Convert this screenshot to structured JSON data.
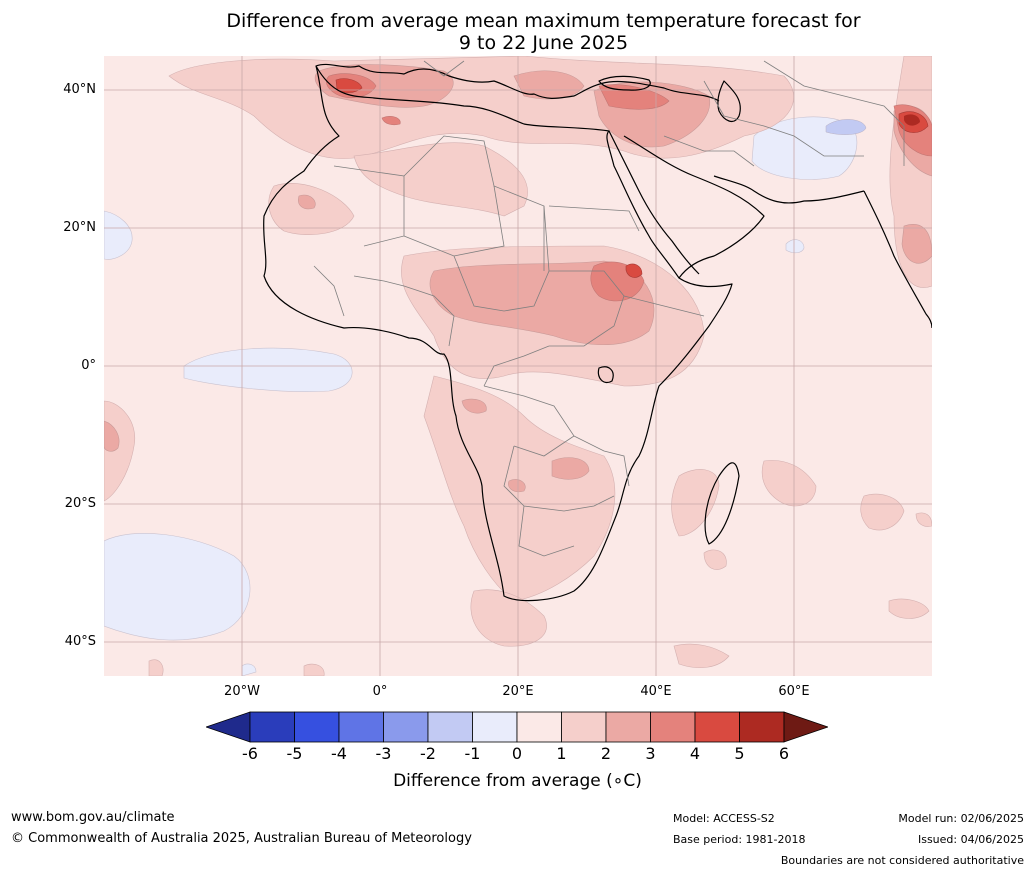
{
  "title_line1": "Difference from average mean maximum temperature forecast for",
  "title_line2": "9 to 22 June 2025",
  "lat_labels": [
    "40°N",
    "20°N",
    "0°",
    "20°S",
    "40°S"
  ],
  "lon_labels": [
    "20°W",
    "0°",
    "20°E",
    "40°E",
    "60°E"
  ],
  "colorbar": {
    "ticks": [
      "-6",
      "-5",
      "-4",
      "-3",
      "-2",
      "-1",
      "0",
      "1",
      "2",
      "3",
      "4",
      "5",
      "6"
    ],
    "colors": [
      "#1f2a8c",
      "#2a3dbb",
      "#3650e0",
      "#5f74e6",
      "#8a9aec",
      "#c2caf3",
      "#e9ecfb",
      "#fbe9e7",
      "#f5cfcb",
      "#eba9a4",
      "#e4827c",
      "#d94a40",
      "#ad2a22",
      "#6e1a14"
    ],
    "label": "Difference from average (∘C)"
  },
  "footer": {
    "website": "www.bom.gov.au/climate",
    "copyright": "© Commonwealth of Australia 2025, Australian Bureau of Meteorology",
    "model": "Model: ACCESS-S2",
    "base_period": "Base period: 1981-2018",
    "model_run": "Model run: 02/06/2025",
    "issued": "Issued: 04/06/2025",
    "boundaries": "Boundaries are not considered authoritative"
  }
}
